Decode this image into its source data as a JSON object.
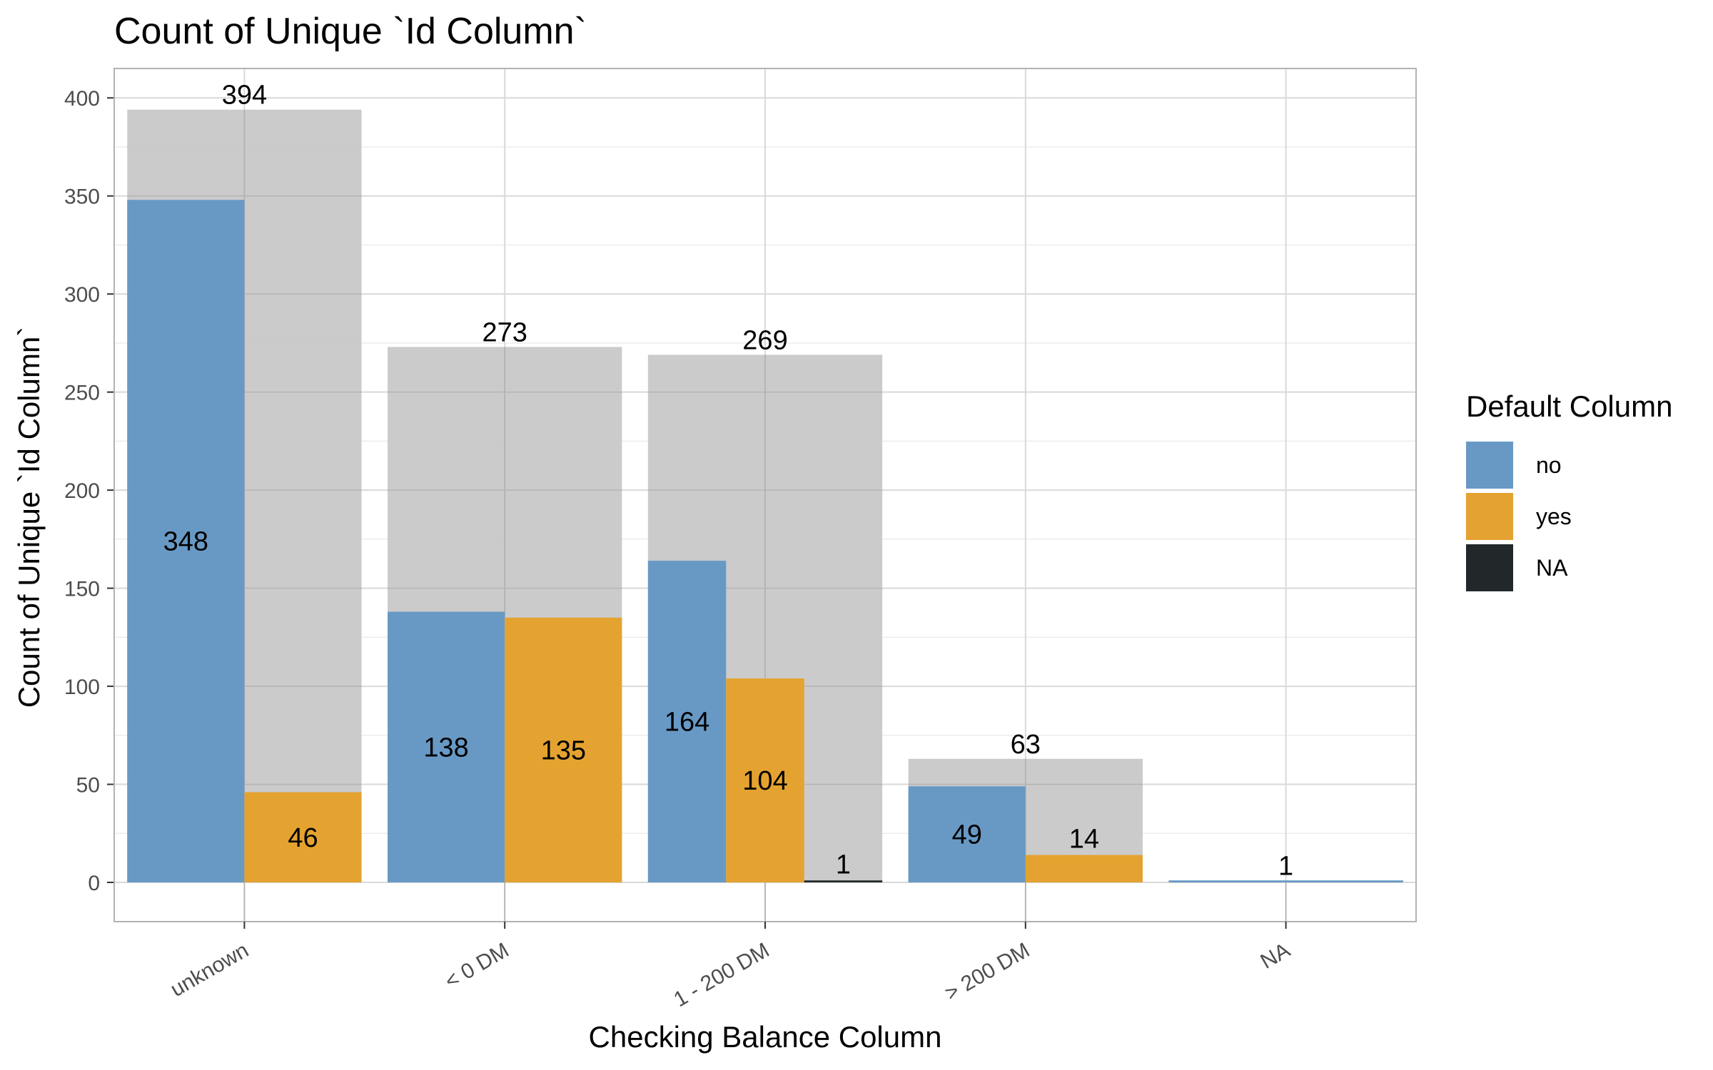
{
  "title": "Count of Unique `Id Column`",
  "chart_data": {
    "type": "bar",
    "title": "Count of Unique `Id Column`",
    "xlabel": "Checking Balance Column",
    "ylabel": "Count of Unique `Id Column`",
    "ylim": [
      -20,
      415
    ],
    "y_ticks": [
      0,
      50,
      100,
      150,
      200,
      250,
      300,
      350,
      400
    ],
    "grid": true,
    "legend_position": "right",
    "categories": [
      "unknown",
      "< 0 DM",
      "1 - 200 DM",
      "> 200 DM",
      "NA"
    ],
    "totals": [
      394,
      273,
      269,
      63,
      1
    ],
    "series": [
      {
        "name": "no",
        "color": "#6899C5",
        "values": [
          348,
          138,
          164,
          49,
          1
        ]
      },
      {
        "name": "yes",
        "color": "#E4A330",
        "values": [
          46,
          135,
          104,
          14,
          null
        ]
      },
      {
        "name": "NA",
        "color": "#222829",
        "values": [
          null,
          null,
          1,
          null,
          null
        ]
      }
    ],
    "legend_title": "Default Column",
    "total_bar_color": "#C8C8C8"
  }
}
